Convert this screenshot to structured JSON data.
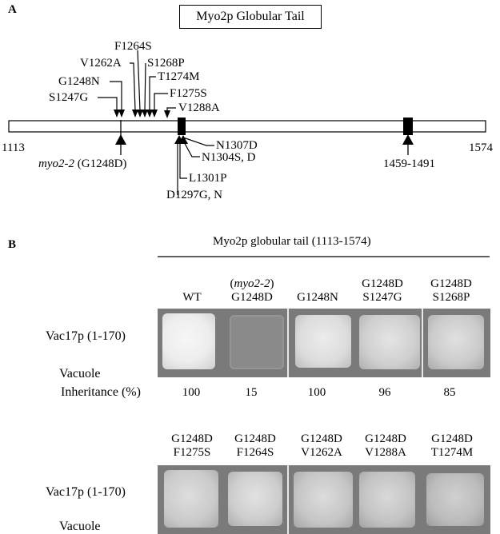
{
  "panel_a": {
    "label": "A",
    "title": "Myo2p Globular Tail",
    "range_start": "1113",
    "range_end": "1574",
    "mutations_above": [
      "S1247G",
      "G1248N",
      "V1262A",
      "F1264S",
      "S1268P",
      "T1274M",
      "F1275S",
      "V1288A"
    ],
    "mutations_below": [
      "N1307D",
      "N1304S, D",
      "L1301P",
      "D1297G, N"
    ],
    "myo2_label_italic": "myo2-2",
    "myo2_label_rest": " (G1248D)",
    "region_label": "1459-1491"
  },
  "panel_b": {
    "label": "B",
    "header": "Myo2p globular tail (1113-1574)",
    "row_label": "Vac17p (1-170)",
    "vacuole_label": "Vacuole",
    "inheritance_label": "Inheritance (%)",
    "row1": [
      {
        "line1": "",
        "line2": "WT",
        "value": "100",
        "tone": "bright"
      },
      {
        "line1": "(myo2-2)",
        "line2": "G1248D",
        "value": "15",
        "tone": "faint"
      },
      {
        "line1": "",
        "line2": "G1248N",
        "value": "100",
        "tone": "bright"
      },
      {
        "line1": "G1248D",
        "line2": "S1247G",
        "value": "96",
        "tone": "medium"
      },
      {
        "line1": "G1248D",
        "line2": "S1268P",
        "value": "85",
        "tone": "medium"
      }
    ],
    "row2": [
      {
        "line1": "G1248D",
        "line2": "F1275S",
        "tone": "medium"
      },
      {
        "line1": "G1248D",
        "line2": "F1264S",
        "tone": "medium"
      },
      {
        "line1": "G1248D",
        "line2": "V1262A",
        "tone": "medium"
      },
      {
        "line1": "G1248D",
        "line2": "V1288A",
        "tone": "medium"
      },
      {
        "line1": "G1248D",
        "line2": "T1274M",
        "tone": "medium"
      }
    ]
  },
  "colors": {
    "plate": "#7a7a7a",
    "colony": "#e4e4e4",
    "faint_colony": "#8e8e8e"
  }
}
